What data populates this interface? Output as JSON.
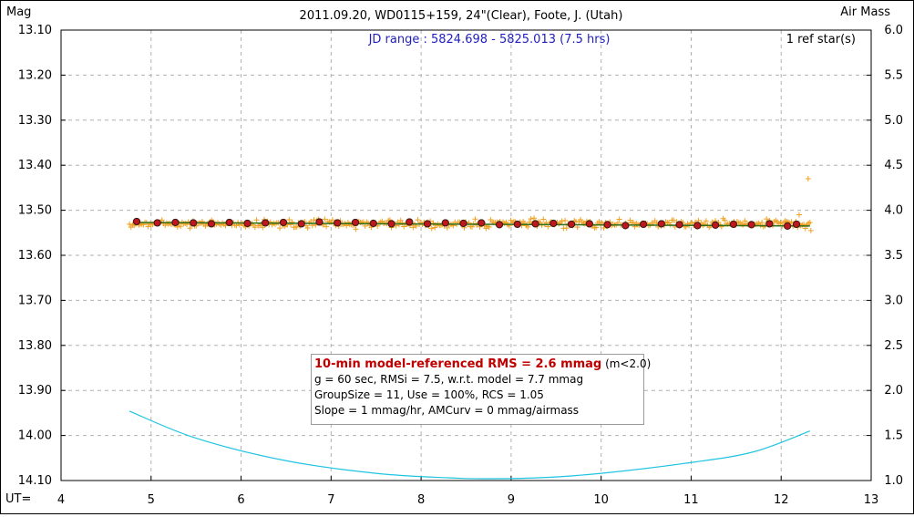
{
  "chart_data": {
    "type": "scatter",
    "title": "2011.09.20, WD0115+159, 24\"(Clear), Foote, J. (Utah)",
    "jd_range": "JD range : 5824.698 - 5825.013 (7.5 hrs)",
    "ref_stars": "1 ref star(s)",
    "ylabel_left": "Mag",
    "ylabel_right": "Air Mass",
    "xlabel": "UT=",
    "xlim": [
      4,
      13
    ],
    "ylim_left": [
      13.1,
      14.1
    ],
    "ylim_right": [
      1.0,
      6.0
    ],
    "left_axis_inverted": true,
    "grid": true,
    "x_ticks": [
      "4",
      "5",
      "6",
      "7",
      "8",
      "9",
      "10",
      "11",
      "12",
      "13"
    ],
    "y_ticks_left": [
      "13.10",
      "13.20",
      "13.30",
      "13.40",
      "13.50",
      "13.60",
      "13.70",
      "13.80",
      "13.90",
      "14.00",
      "14.10"
    ],
    "y_ticks_right": [
      "6.0",
      "5.5",
      "5.0",
      "4.5",
      "4.0",
      "3.5",
      "3.0",
      "2.5",
      "2.0",
      "1.5",
      "1.0"
    ],
    "colors": {
      "raw_points": "#f0a020",
      "binned_points": "#c0161f",
      "model_line": "#2d6e1a",
      "airmass": "#1ec4e0",
      "grid": "#b0b0b0",
      "jd_text": "#1f1fbf",
      "rms_text": "#c00000"
    },
    "series": [
      {
        "kind": "raw",
        "x_start": 4.76,
        "x_end": 12.32,
        "count": 440,
        "center_mag": 13.53,
        "scatter_mag": 0.008,
        "outliers": [
          {
            "x": 12.3,
            "y": 13.43
          },
          {
            "x": 12.2,
            "y": 13.51
          },
          {
            "x": 12.33,
            "y": 13.545
          }
        ]
      },
      {
        "kind": "binned",
        "x": [
          4.84,
          5.07,
          5.27,
          5.47,
          5.67,
          5.87,
          6.07,
          6.27,
          6.47,
          6.67,
          6.87,
          7.07,
          7.27,
          7.47,
          7.67,
          7.87,
          8.07,
          8.27,
          8.47,
          8.67,
          8.87,
          9.07,
          9.27,
          9.47,
          9.67,
          9.87,
          10.07,
          10.27,
          10.47,
          10.67,
          10.87,
          11.07,
          11.27,
          11.47,
          11.67,
          11.87,
          12.07,
          12.17
        ],
        "y": [
          13.525,
          13.528,
          13.527,
          13.528,
          13.53,
          13.527,
          13.529,
          13.528,
          13.527,
          13.53,
          13.526,
          13.528,
          13.527,
          13.529,
          13.53,
          13.526,
          13.53,
          13.528,
          13.529,
          13.528,
          13.532,
          13.531,
          13.53,
          13.529,
          13.531,
          13.53,
          13.532,
          13.534,
          13.531,
          13.53,
          13.532,
          13.534,
          13.533,
          13.531,
          13.532,
          13.53,
          13.535,
          13.531
        ]
      },
      {
        "kind": "model",
        "x": [
          4.8,
          12.32
        ],
        "y": [
          13.527,
          13.535
        ]
      },
      {
        "kind": "airmass",
        "x": [
          4.76,
          5.5,
          6.5,
          7.5,
          8.3,
          8.7,
          9.3,
          10.0,
          11.0,
          11.7,
          12.32
        ],
        "y": [
          1.77,
          1.47,
          1.22,
          1.08,
          1.03,
          1.02,
          1.03,
          1.08,
          1.2,
          1.32,
          1.55
        ]
      }
    ]
  },
  "stats": {
    "rms_label": "10-min model-referenced RMS = 2.6 mmag",
    "rms_suffix": " (m<2.0)",
    "line2": "g = 60 sec, RMSi = 7.5, w.r.t. model = 7.7 mmag",
    "line3": "GroupSize = 11, Use = 100%, RCS = 1.05",
    "line4": "Slope = 1 mmag/hr, AMCurv = 0 mmag/airmass"
  }
}
